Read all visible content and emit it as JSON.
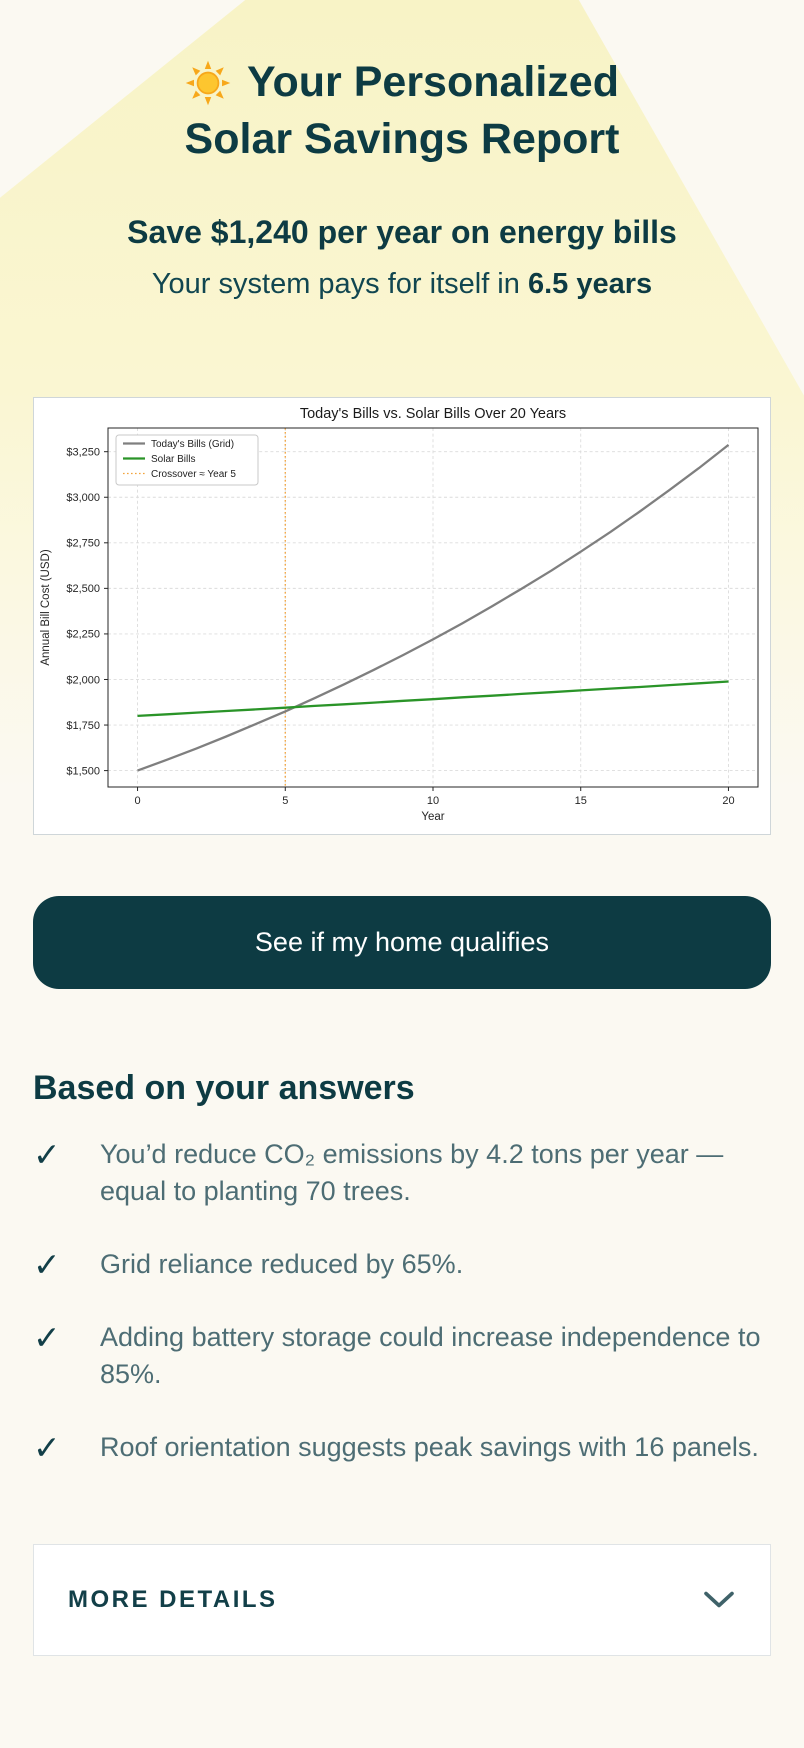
{
  "page": {
    "background": "#fbf9f2",
    "beam_color": "#faf6d2"
  },
  "hero": {
    "title_line1": "Your Personalized",
    "title_line2": "Solar Savings Report",
    "headline": "Save $1,240 per year on energy bills",
    "payback_prefix": "Your system pays for itself in ",
    "payback_bold": "6.5 years"
  },
  "cta": {
    "label": "See if my home qualifies"
  },
  "answers": {
    "heading": "Based on your answers",
    "check_glyph": "✓",
    "items": [
      "You’d reduce CO₂ emissions by 4.2 tons per year — equal to planting 70 trees.",
      "Grid reliance reduced by 65%.",
      "Adding battery storage could increase independence to 85%.",
      "Roof orientation suggests peak savings with 16 panels."
    ]
  },
  "more_details": {
    "label": "MORE DETAILS"
  },
  "colors": {
    "accent_dark_teal": "#0d3b43",
    "body_text": "#4d6d74",
    "grid_series": "#7f7f7f",
    "solar_series": "#2a9428",
    "crossover": "#f2a33c"
  },
  "chart_data": {
    "type": "line",
    "title": "Today's Bills vs. Solar Bills Over 20 Years",
    "xlabel": "Year",
    "ylabel": "Annual Bill Cost (USD)",
    "x": [
      0,
      1,
      2,
      3,
      4,
      5,
      6,
      7,
      8,
      9,
      10,
      11,
      12,
      13,
      14,
      15,
      16,
      17,
      18,
      19,
      20
    ],
    "series": [
      {
        "name": "Today's Bills (Grid)",
        "color": "#7f7f7f",
        "dash": "solid",
        "values": [
          1500,
          1560,
          1622,
          1687,
          1755,
          1825,
          1898,
          1974,
          2053,
          2135,
          2220,
          2309,
          2402,
          2498,
          2597,
          2701,
          2809,
          2922,
          3039,
          3160,
          3287
        ]
      },
      {
        "name": "Solar Bills",
        "color": "#2a9428",
        "dash": "solid",
        "values": [
          1800,
          1809,
          1818,
          1827,
          1836,
          1845,
          1855,
          1864,
          1873,
          1883,
          1892,
          1902,
          1911,
          1921,
          1930,
          1940,
          1950,
          1959,
          1969,
          1979,
          1989
        ]
      }
    ],
    "crossover": {
      "x": 5,
      "label": "Crossover ≈ Year 5",
      "color": "#f2a33c",
      "dash": "dotted"
    },
    "xticks": [
      0,
      5,
      10,
      15,
      20
    ],
    "yticks": [
      1500,
      1750,
      2000,
      2250,
      2500,
      2750,
      3000,
      3250
    ],
    "ytick_prefix": "$",
    "xlim": [
      -1,
      21
    ],
    "ylim": [
      1410,
      3380
    ],
    "grid": true,
    "legend_position": "upper-left"
  }
}
